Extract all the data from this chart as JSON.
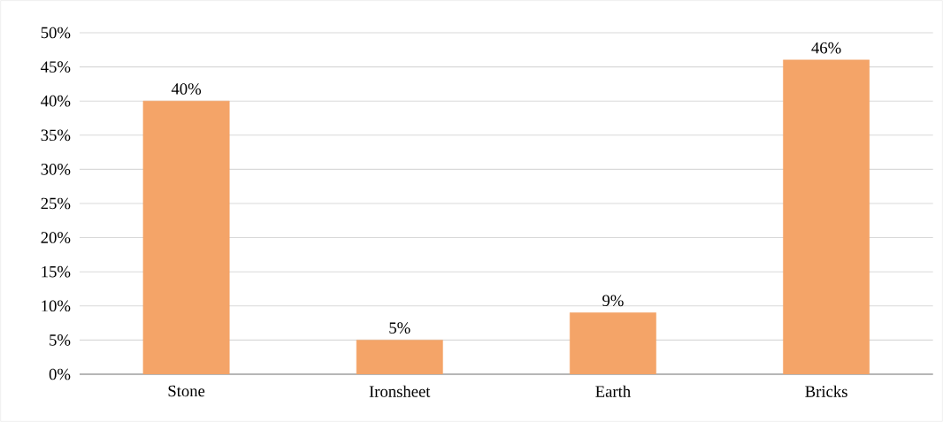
{
  "chart_data": {
    "type": "bar",
    "categories": [
      "Stone",
      "Ironsheet",
      "Earth",
      "Bricks"
    ],
    "values": [
      40,
      5,
      9,
      46
    ],
    "value_labels": [
      "40%",
      "5%",
      "9%",
      "46%"
    ],
    "color": "#f4a468",
    "ylim": [
      0,
      50
    ],
    "yticks": [
      {
        "value": 0,
        "label": "0%"
      },
      {
        "value": 5,
        "label": "5%"
      },
      {
        "value": 10,
        "label": "10%"
      },
      {
        "value": 15,
        "label": "15%"
      },
      {
        "value": 20,
        "label": "20%"
      },
      {
        "value": 25,
        "label": "25%"
      },
      {
        "value": 30,
        "label": "30%"
      },
      {
        "value": 35,
        "label": "35%"
      },
      {
        "value": 40,
        "label": "40%"
      },
      {
        "value": 45,
        "label": "45%"
      },
      {
        "value": 50,
        "label": "50%"
      }
    ],
    "grid": "y"
  }
}
